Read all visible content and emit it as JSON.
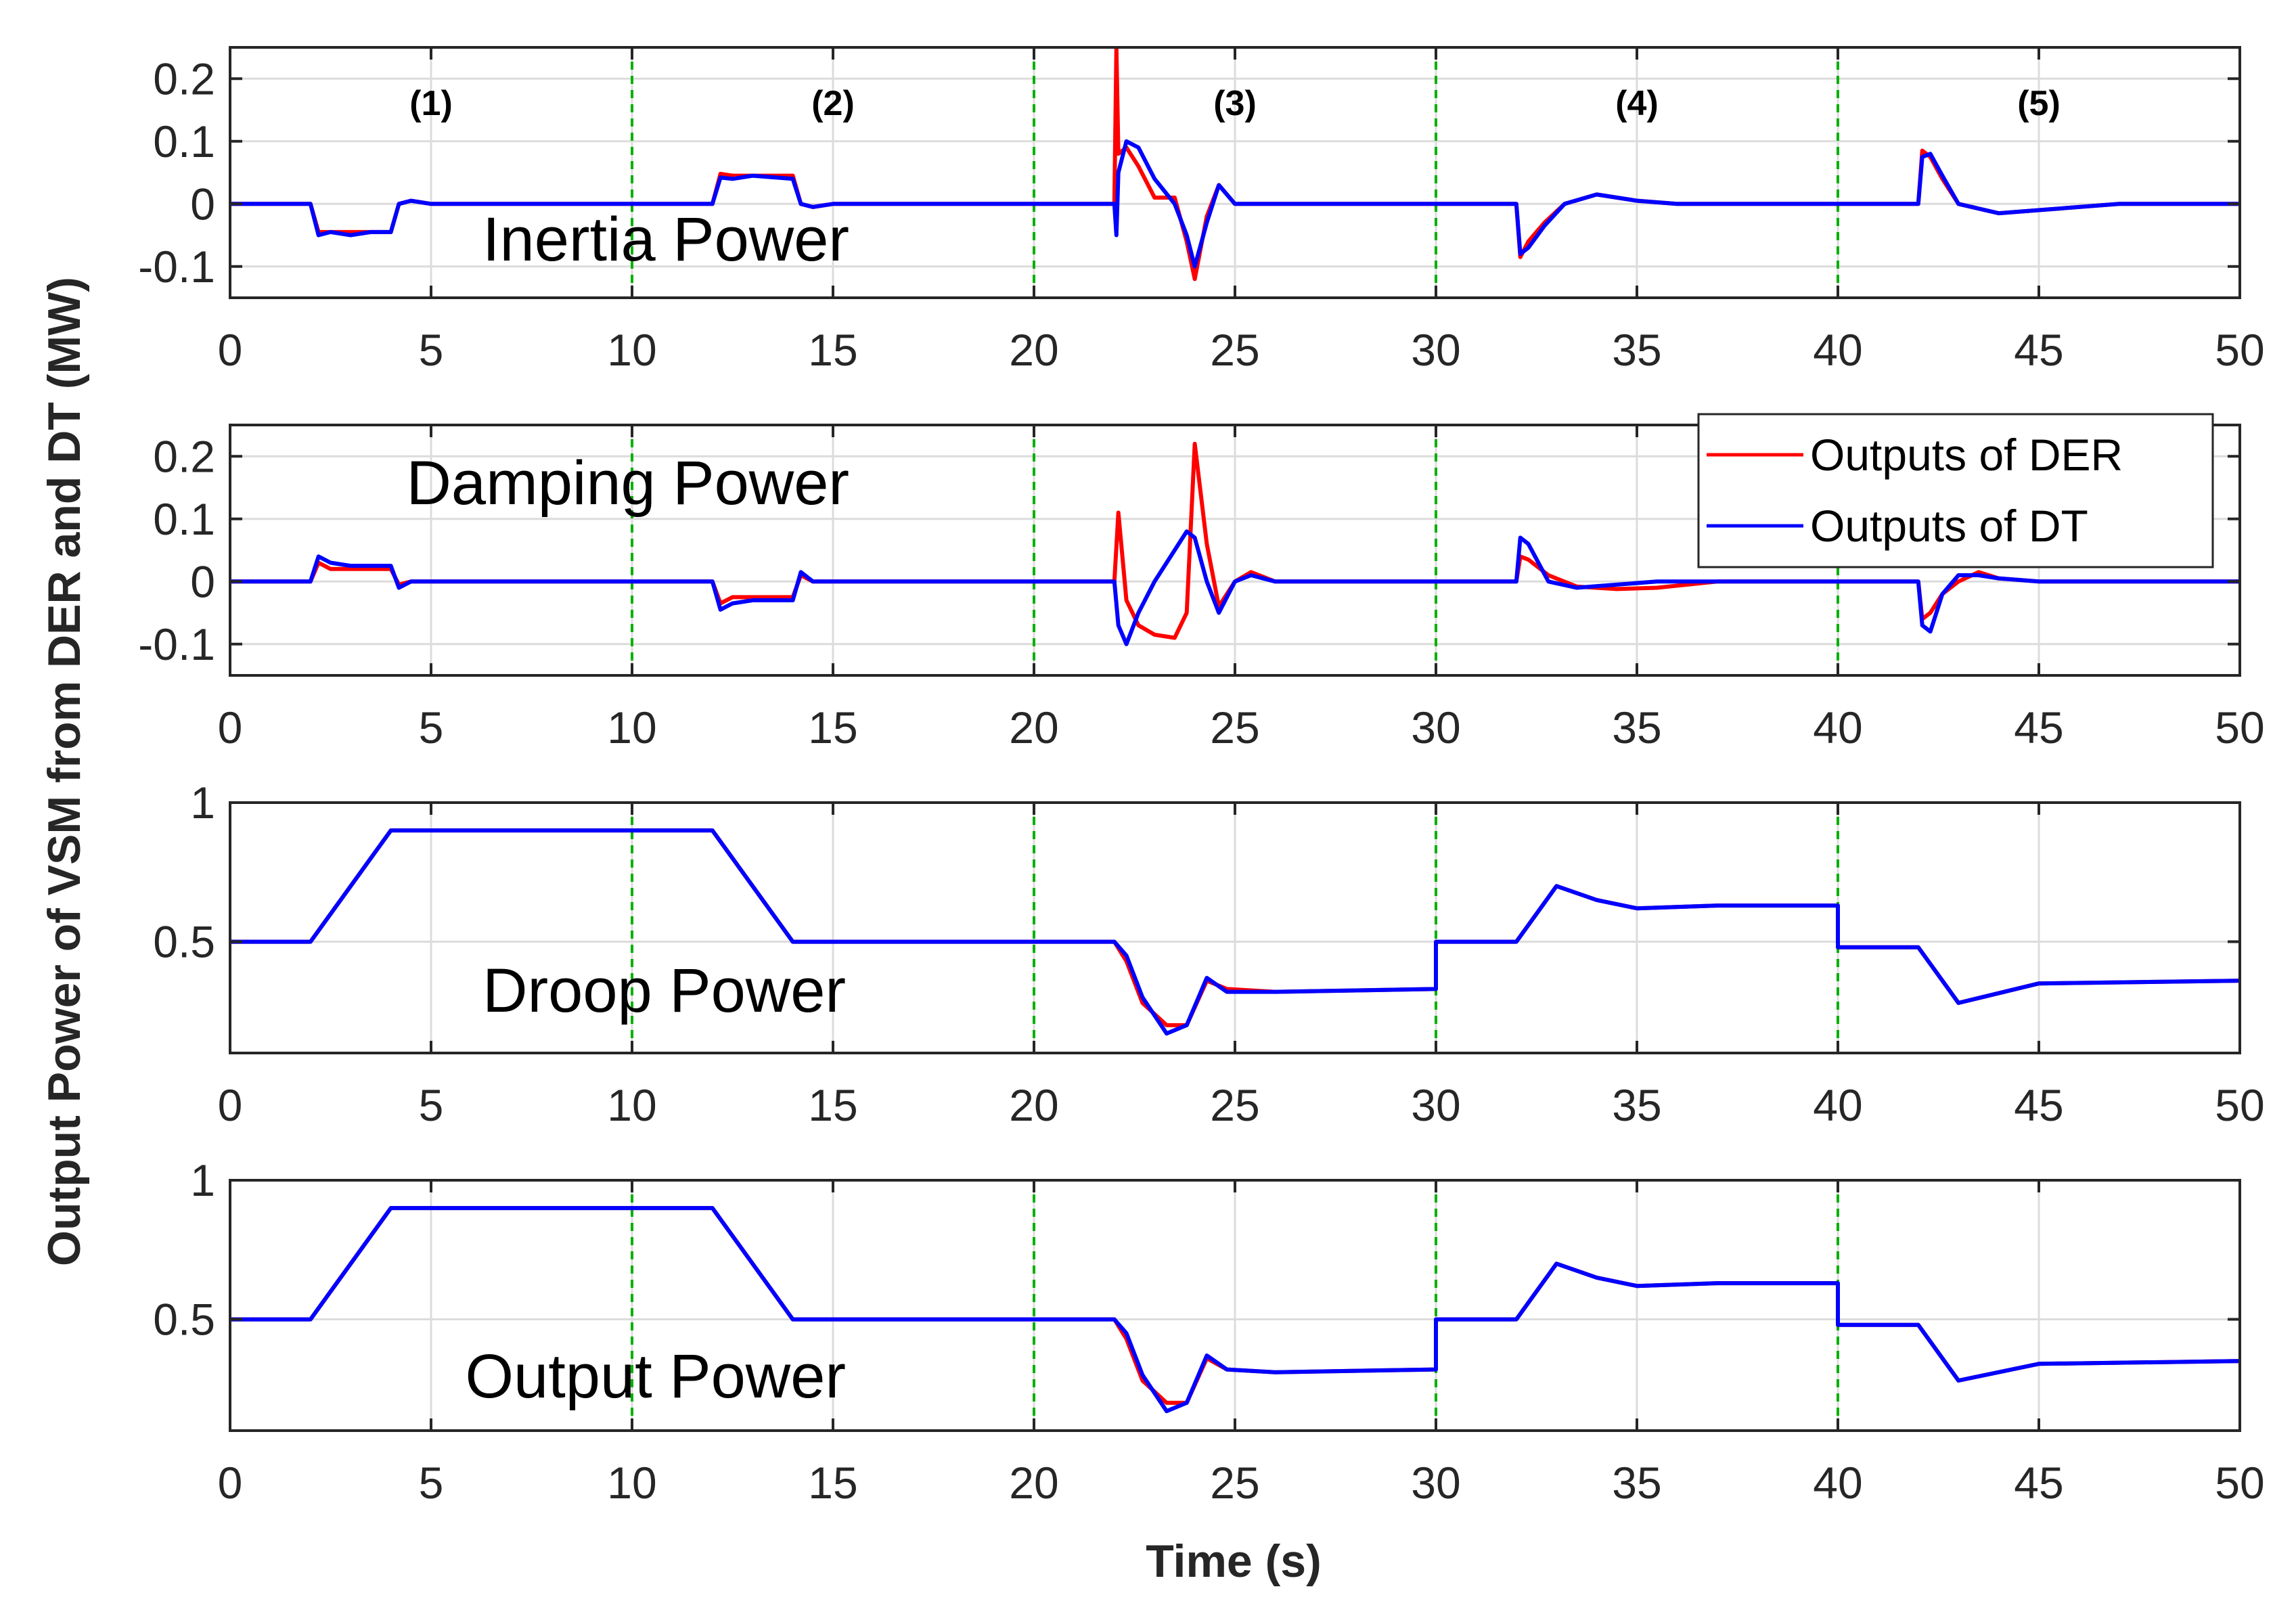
{
  "chart_data": {
    "type": "line",
    "xlabel": "Time (s)",
    "ylabel": "Output Power of VSM from DER and DT (MW)",
    "xlim": [
      0,
      50
    ],
    "xticks": [
      0,
      5,
      10,
      15,
      20,
      25,
      30,
      35,
      40,
      45,
      50
    ],
    "grid": true,
    "event_lines": [
      10,
      20,
      30,
      40
    ],
    "segments": [
      {
        "label": "(1)",
        "x": 5
      },
      {
        "label": "(2)",
        "x": 15
      },
      {
        "label": "(3)",
        "x": 25
      },
      {
        "label": "(4)",
        "x": 35
      },
      {
        "label": "(5)",
        "x": 45
      }
    ],
    "legend": {
      "placement": "top-right of second panel",
      "entries": [
        {
          "name": "Outputs of DER",
          "color": "#ff0000"
        },
        {
          "name": "Outputs of DT",
          "color": "#0000ff"
        }
      ]
    },
    "colors": {
      "der": "#ff0000",
      "dt": "#0000ff",
      "event_line": "#00b000",
      "grid": "#dcdcdc",
      "axis": "#262626"
    },
    "panels": [
      {
        "name": "Inertia Power",
        "ylim": [
          -0.15,
          0.25
        ],
        "yticks": [
          -0.1,
          0,
          0.1,
          0.2
        ],
        "ytick_labels": [
          "-0.1",
          "0",
          "0.1",
          "0.2"
        ],
        "series": [
          {
            "name": "Outputs of DER",
            "x": [
              0,
              2,
              2.2,
              2.5,
              3,
              3.5,
              4,
              4.2,
              4.5,
              5,
              10,
              12,
              12.2,
              12.5,
              13,
              14,
              14.2,
              14.5,
              15,
              20,
              22,
              22.05,
              22.1,
              22.3,
              22.6,
              23,
              23.5,
              23.8,
              24,
              24.3,
              24.6,
              25,
              26,
              30,
              32,
              32.1,
              32.3,
              32.7,
              33.2,
              34,
              35,
              36,
              40,
              42,
              42.1,
              42.3,
              42.6,
              43,
              44,
              45,
              47,
              50
            ],
            "y": [
              0,
              0,
              -0.045,
              -0.045,
              -0.045,
              -0.045,
              -0.045,
              0,
              0.005,
              0,
              0,
              0,
              0.048,
              0.045,
              0.045,
              0.045,
              0,
              -0.005,
              0,
              0,
              0,
              0.25,
              0.08,
              0.09,
              0.06,
              0.01,
              0.01,
              -0.06,
              -0.12,
              -0.02,
              0.03,
              0.0,
              0,
              0,
              0,
              -0.085,
              -0.06,
              -0.03,
              0.0,
              0.015,
              0.005,
              0,
              0,
              0,
              0.085,
              0.075,
              0.04,
              0.0,
              -0.015,
              -0.01,
              0,
              0
            ]
          },
          {
            "name": "Outputs of DT",
            "x": [
              0,
              2,
              2.2,
              2.5,
              3,
              3.5,
              4,
              4.2,
              4.5,
              5,
              10,
              12,
              12.2,
              12.5,
              13,
              14,
              14.2,
              14.5,
              15,
              20,
              22,
              22.05,
              22.1,
              22.3,
              22.6,
              23,
              23.5,
              23.8,
              24,
              24.3,
              24.6,
              25,
              26,
              30,
              32,
              32.1,
              32.3,
              32.7,
              33.2,
              34,
              35,
              36,
              40,
              42,
              42.1,
              42.3,
              42.6,
              43,
              44,
              45,
              47,
              50
            ],
            "y": [
              0,
              0,
              -0.05,
              -0.045,
              -0.05,
              -0.045,
              -0.045,
              0,
              0.005,
              0,
              0,
              0,
              0.042,
              0.04,
              0.045,
              0.04,
              0,
              -0.005,
              0,
              0,
              0,
              -0.05,
              0.05,
              0.1,
              0.09,
              0.04,
              0.0,
              -0.05,
              -0.1,
              -0.03,
              0.03,
              0.0,
              0,
              0,
              0,
              -0.08,
              -0.07,
              -0.035,
              0.0,
              0.015,
              0.005,
              0,
              0,
              0,
              0.075,
              0.08,
              0.045,
              0.0,
              -0.015,
              -0.01,
              0,
              0
            ]
          }
        ]
      },
      {
        "name": "Damping Power",
        "ylim": [
          -0.15,
          0.25
        ],
        "yticks": [
          -0.1,
          0,
          0.1,
          0.2
        ],
        "ytick_labels": [
          "-0.1",
          "0",
          "0.1",
          "0.2"
        ],
        "series": [
          {
            "name": "Outputs of DER",
            "x": [
              0,
              2,
              2.2,
              2.5,
              3,
              3.5,
              4,
              4.2,
              4.5,
              5,
              10,
              12,
              12.2,
              12.5,
              13,
              14,
              14.2,
              14.5,
              15,
              20,
              22,
              22.1,
              22.3,
              22.6,
              23,
              23.5,
              23.8,
              24,
              24.3,
              24.6,
              25,
              25.4,
              26,
              30,
              32,
              32.1,
              32.3,
              32.8,
              33.5,
              34.5,
              35.5,
              37,
              40,
              42,
              42.1,
              42.3,
              42.6,
              43,
              43.5,
              44,
              45,
              50
            ],
            "y": [
              0,
              0,
              0.03,
              0.02,
              0.02,
              0.02,
              0.02,
              -0.005,
              0,
              0,
              0,
              0,
              -0.035,
              -0.025,
              -0.025,
              -0.025,
              0.01,
              0,
              0,
              0,
              0,
              0.11,
              -0.03,
              -0.07,
              -0.085,
              -0.09,
              -0.05,
              0.22,
              0.06,
              -0.04,
              0.0,
              0.015,
              0,
              0,
              0,
              0.04,
              0.035,
              0.01,
              -0.008,
              -0.012,
              -0.01,
              0,
              0,
              0,
              -0.06,
              -0.05,
              -0.02,
              0.0,
              0.015,
              0.005,
              0,
              0
            ]
          },
          {
            "name": "Outputs of DT",
            "x": [
              0,
              2,
              2.2,
              2.5,
              3,
              3.5,
              4,
              4.2,
              4.5,
              5,
              10,
              12,
              12.2,
              12.5,
              13,
              14,
              14.2,
              14.5,
              15,
              20,
              22,
              22.1,
              22.3,
              22.6,
              23,
              23.5,
              23.8,
              24,
              24.3,
              24.6,
              25,
              25.4,
              26,
              30,
              32,
              32.1,
              32.3,
              32.8,
              33.5,
              34.5,
              35.5,
              37,
              40,
              42,
              42.1,
              42.3,
              42.6,
              43,
              43.5,
              44,
              45,
              50
            ],
            "y": [
              0,
              0,
              0.04,
              0.03,
              0.025,
              0.025,
              0.025,
              -0.01,
              0,
              0,
              0,
              0,
              -0.045,
              -0.035,
              -0.03,
              -0.03,
              0.015,
              0,
              0,
              0,
              0,
              -0.07,
              -0.1,
              -0.05,
              0.0,
              0.05,
              0.08,
              0.07,
              0.0,
              -0.05,
              0.0,
              0.01,
              0,
              0,
              0,
              0.07,
              0.06,
              0.0,
              -0.01,
              -0.005,
              0.0,
              0,
              0,
              0,
              -0.07,
              -0.08,
              -0.02,
              0.01,
              0.01,
              0.005,
              0,
              0
            ]
          }
        ]
      },
      {
        "name": "Droop Power",
        "ylim": [
          0.1,
          1.0
        ],
        "yticks": [
          0.5,
          1
        ],
        "ytick_labels": [
          "0.5",
          "1"
        ],
        "series": [
          {
            "name": "Outputs of DER",
            "x": [
              0,
              2,
              4,
              4.3,
              10,
              12,
              14,
              14.3,
              20,
              22,
              22.3,
              22.7,
              23.3,
              23.8,
              24.3,
              24.8,
              26,
              30,
              30,
              32,
              33,
              34,
              35,
              37,
              40,
              40,
              42,
              43,
              45,
              50
            ],
            "y": [
              0.5,
              0.5,
              0.9,
              0.9,
              0.9,
              0.9,
              0.5,
              0.5,
              0.5,
              0.5,
              0.43,
              0.28,
              0.2,
              0.2,
              0.36,
              0.33,
              0.32,
              0.33,
              0.5,
              0.5,
              0.7,
              0.65,
              0.62,
              0.63,
              0.63,
              0.48,
              0.48,
              0.28,
              0.35,
              0.36
            ]
          },
          {
            "name": "Outputs of DT",
            "x": [
              0,
              2,
              4,
              4.3,
              10,
              12,
              14,
              14.3,
              20,
              22,
              22.3,
              22.7,
              23.3,
              23.8,
              24.3,
              24.8,
              26,
              30,
              30,
              32,
              33,
              34,
              35,
              37,
              40,
              40,
              42,
              43,
              45,
              50
            ],
            "y": [
              0.5,
              0.5,
              0.9,
              0.9,
              0.9,
              0.9,
              0.5,
              0.5,
              0.5,
              0.5,
              0.45,
              0.3,
              0.17,
              0.2,
              0.37,
              0.32,
              0.32,
              0.33,
              0.5,
              0.5,
              0.7,
              0.65,
              0.62,
              0.63,
              0.63,
              0.48,
              0.48,
              0.28,
              0.35,
              0.36
            ]
          }
        ]
      },
      {
        "name": "Output Power",
        "ylim": [
          0.1,
          1.0
        ],
        "yticks": [
          0.5,
          1
        ],
        "ytick_labels": [
          "0.5",
          "1"
        ],
        "series": [
          {
            "name": "Outputs of DER",
            "x": [
              0,
              2,
              4,
              4.3,
              10,
              12,
              14,
              14.3,
              20,
              22,
              22.3,
              22.7,
              23.3,
              23.8,
              24.3,
              24.8,
              26,
              30,
              30,
              32,
              33,
              34,
              35,
              37,
              40,
              40,
              42,
              43,
              45,
              50
            ],
            "y": [
              0.5,
              0.5,
              0.9,
              0.9,
              0.9,
              0.9,
              0.5,
              0.5,
              0.5,
              0.5,
              0.43,
              0.28,
              0.2,
              0.2,
              0.36,
              0.32,
              0.31,
              0.32,
              0.5,
              0.5,
              0.7,
              0.65,
              0.62,
              0.63,
              0.63,
              0.48,
              0.48,
              0.28,
              0.34,
              0.35
            ]
          },
          {
            "name": "Outputs of DT",
            "x": [
              0,
              2,
              4,
              4.3,
              10,
              12,
              14,
              14.3,
              20,
              22,
              22.3,
              22.7,
              23.3,
              23.8,
              24.3,
              24.8,
              26,
              30,
              30,
              32,
              33,
              34,
              35,
              37,
              40,
              40,
              42,
              43,
              45,
              50
            ],
            "y": [
              0.5,
              0.5,
              0.9,
              0.9,
              0.9,
              0.9,
              0.5,
              0.5,
              0.5,
              0.5,
              0.45,
              0.3,
              0.17,
              0.2,
              0.37,
              0.32,
              0.31,
              0.32,
              0.5,
              0.5,
              0.7,
              0.65,
              0.62,
              0.63,
              0.63,
              0.48,
              0.48,
              0.28,
              0.34,
              0.35
            ]
          }
        ]
      }
    ]
  }
}
